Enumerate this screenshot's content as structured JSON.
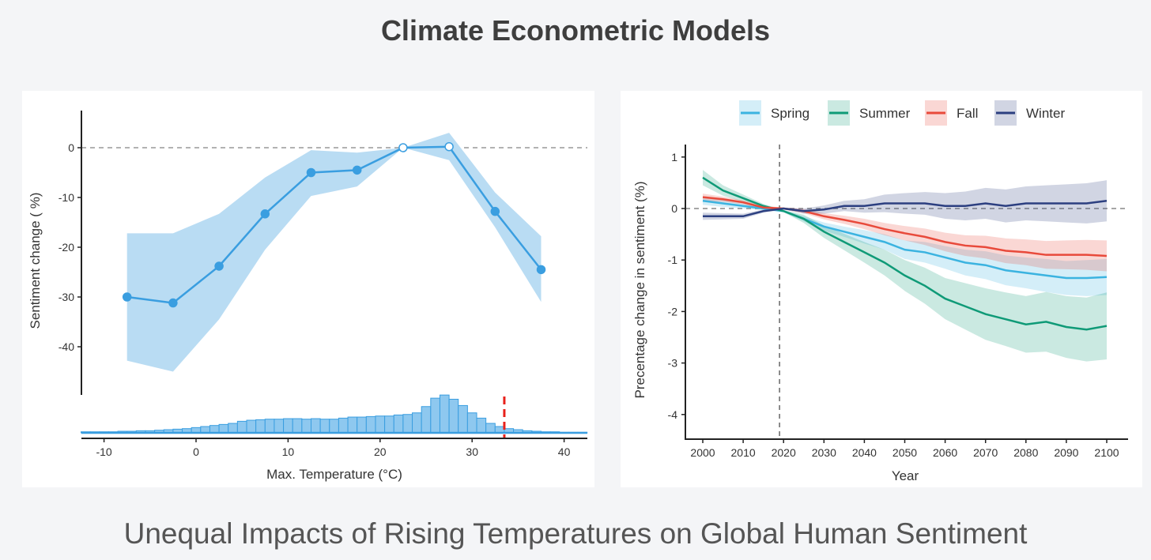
{
  "page": {
    "title": "Climate Econometric Models",
    "subtitle": "Unequal Impacts of Rising Temperatures on Global Human Sentiment"
  },
  "chart_data": [
    {
      "type": "line",
      "xlabel": "Max. Temperature (°C)",
      "ylabel": "Sentiment change ( %)",
      "xlim": [
        -12.5,
        42.5
      ],
      "ylim": [
        -50,
        7
      ],
      "xticks": [
        "-10",
        "0",
        "10",
        "20",
        "30",
        "40"
      ],
      "yticks": [
        "0",
        "-10",
        "-20",
        "-30",
        "-40"
      ],
      "color": "#3a9ee0",
      "band_color": "#b9dcf3",
      "x": [
        -7.5,
        -2.5,
        2.5,
        7.5,
        12.5,
        17.5,
        22.5,
        27.5,
        32.5,
        37.5
      ],
      "y": [
        -30,
        -31.2,
        -23.8,
        -13.3,
        -5,
        -4.5,
        0,
        0.2,
        -12.8,
        -24.5
      ],
      "ci_upper": [
        -17.2,
        -17.2,
        -13.3,
        -6,
        -0.5,
        -1,
        0,
        3,
        -9,
        -17.8
      ],
      "ci_lower": [
        -42.8,
        -45,
        -34.5,
        -20.5,
        -9.7,
        -7.8,
        0,
        -2.5,
        -16,
        -31
      ],
      "reference_points": [
        22.5,
        27.5
      ],
      "histogram": {
        "bin_start": -12.5,
        "bin_width": 1,
        "counts": [
          1,
          1,
          1,
          1,
          1.5,
          1.5,
          2,
          2,
          2.5,
          3,
          3.5,
          4,
          5,
          6,
          7,
          8,
          9,
          11,
          12,
          12.5,
          13,
          13,
          13.5,
          13.5,
          13,
          13.5,
          13,
          13,
          14,
          15,
          15,
          15.5,
          16,
          16,
          17,
          17.5,
          19,
          25,
          33,
          36,
          32,
          26,
          19,
          14,
          9,
          6,
          4,
          3,
          2,
          1.5,
          1,
          1,
          0.5,
          0.5,
          0.5
        ],
        "marker_x": 33.5,
        "marker_color": "#e8211b"
      }
    },
    {
      "type": "line",
      "xlabel": "Year",
      "ylabel": "Precentage change in sentiment (%)",
      "xlim": [
        1995,
        2105
      ],
      "ylim": [
        -4.5,
        1.25
      ],
      "xticks": [
        "2000",
        "2010",
        "2020",
        "2030",
        "2040",
        "2050",
        "2060",
        "2070",
        "2080",
        "2090",
        "2100"
      ],
      "yticks": [
        "1",
        "0",
        "-1",
        "-2",
        "-3",
        "-4"
      ],
      "vline": 2019,
      "legend_position": "top",
      "x": [
        2000,
        2005,
        2010,
        2015,
        2020,
        2025,
        2030,
        2035,
        2040,
        2045,
        2050,
        2055,
        2060,
        2065,
        2070,
        2075,
        2080,
        2085,
        2090,
        2095,
        2100
      ],
      "series": [
        {
          "name": "Spring",
          "color": "#3bb3e0",
          "values": [
            0.15,
            0.1,
            0.05,
            0,
            -0.05,
            -0.2,
            -0.35,
            -0.45,
            -0.55,
            -0.65,
            -0.8,
            -0.85,
            -0.95,
            -1.05,
            -1.1,
            -1.2,
            -1.25,
            -1.3,
            -1.35,
            -1.35,
            -1.33
          ],
          "ci_halfwidth": [
            0.08,
            0.07,
            0.05,
            0.03,
            0.02,
            0.05,
            0.08,
            0.1,
            0.13,
            0.15,
            0.18,
            0.2,
            0.22,
            0.25,
            0.27,
            0.29,
            0.3,
            0.32,
            0.33,
            0.35,
            0.35
          ]
        },
        {
          "name": "Summer",
          "color": "#0f9a77",
          "values": [
            0.6,
            0.35,
            0.2,
            0.05,
            -0.05,
            -0.2,
            -0.45,
            -0.65,
            -0.85,
            -1.05,
            -1.3,
            -1.5,
            -1.75,
            -1.9,
            -2.05,
            -2.15,
            -2.25,
            -2.2,
            -2.3,
            -2.35,
            -2.28
          ],
          "ci_halfwidth": [
            0.15,
            0.1,
            0.07,
            0.04,
            0.02,
            0.08,
            0.12,
            0.16,
            0.2,
            0.25,
            0.3,
            0.35,
            0.4,
            0.45,
            0.5,
            0.52,
            0.55,
            0.58,
            0.6,
            0.62,
            0.65
          ]
        },
        {
          "name": "Fall",
          "color": "#e84a3b",
          "values": [
            0.22,
            0.18,
            0.12,
            0.02,
            0,
            -0.05,
            -0.15,
            -0.22,
            -0.3,
            -0.4,
            -0.48,
            -0.55,
            -0.65,
            -0.72,
            -0.75,
            -0.82,
            -0.85,
            -0.9,
            -0.9,
            -0.9,
            -0.92
          ],
          "ci_halfwidth": [
            0.07,
            0.05,
            0.04,
            0.03,
            0.02,
            0.04,
            0.06,
            0.08,
            0.1,
            0.12,
            0.14,
            0.16,
            0.18,
            0.2,
            0.22,
            0.24,
            0.25,
            0.27,
            0.28,
            0.29,
            0.3
          ]
        },
        {
          "name": "Winter",
          "color": "#2c3f80",
          "values": [
            -0.15,
            -0.15,
            -0.15,
            -0.05,
            0,
            -0.05,
            -0.02,
            0.05,
            0.05,
            0.1,
            0.1,
            0.1,
            0.05,
            0.05,
            0.1,
            0.05,
            0.1,
            0.1,
            0.1,
            0.1,
            0.15
          ],
          "ci_halfwidth": [
            0.07,
            0.06,
            0.05,
            0.03,
            0.02,
            0.05,
            0.08,
            0.1,
            0.13,
            0.17,
            0.2,
            0.22,
            0.25,
            0.28,
            0.3,
            0.32,
            0.33,
            0.35,
            0.37,
            0.39,
            0.4
          ]
        }
      ]
    }
  ]
}
